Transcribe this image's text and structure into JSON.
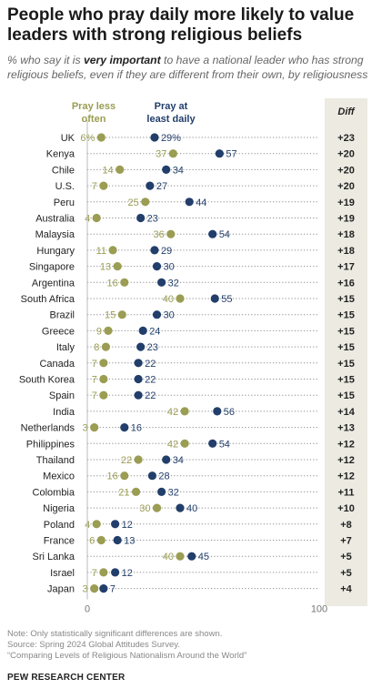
{
  "title": "People who pray daily more likely to value leaders with strong religious beliefs",
  "subtitle": {
    "before": "% who say it is ",
    "emphasis": "very important",
    "after": " to have a national leader who has strong religious beliefs, even if they are different from their own, by religiousness"
  },
  "footnotes": {
    "note": "Note: Only statistically significant differences are shown.",
    "source": "Source: Spring 2024 Global Attitudes Survey.",
    "report": "“Comparing Levels of Religious Nationalism Around the World”"
  },
  "brand": "PEW RESEARCH CENTER",
  "colors": {
    "pray_less_often": "#9a9d52",
    "pray_daily": "#223e6b",
    "diff_panel": "#eceae1",
    "dotted_line": "#8c8c8c"
  },
  "chart_data": {
    "type": "dot",
    "xlim": [
      0,
      100
    ],
    "x_ticks": [
      "0",
      "100"
    ],
    "diff_header": "Diff",
    "categories": [
      "UK",
      "Kenya",
      "Chile",
      "U.S.",
      "Peru",
      "Australia",
      "Malaysia",
      "Hungary",
      "Singapore",
      "Argentina",
      "South Africa",
      "Brazil",
      "Greece",
      "Italy",
      "Canada",
      "South Korea",
      "Spain",
      "India",
      "Netherlands",
      "Philippines",
      "Thailand",
      "Mexico",
      "Colombia",
      "Nigeria",
      "Poland",
      "France",
      "Sri Lanka",
      "Israel",
      "Japan"
    ],
    "series": [
      {
        "name": "Pray less often",
        "legend_lines": [
          "Pray less",
          "often"
        ],
        "labels": [
          "6%",
          "37",
          "14",
          "7",
          "25",
          "4",
          "36",
          "11",
          "13",
          "16",
          "40",
          "15",
          "9",
          "8",
          "7",
          "7",
          "7",
          "42",
          "3",
          "42",
          "22",
          "16",
          "21",
          "30",
          "4",
          "6",
          "40",
          "7",
          "3"
        ],
        "values": [
          6,
          37,
          14,
          7,
          25,
          4,
          36,
          11,
          13,
          16,
          40,
          15,
          9,
          8,
          7,
          7,
          7,
          42,
          3,
          42,
          22,
          16,
          21,
          30,
          4,
          6,
          40,
          7,
          3
        ]
      },
      {
        "name": "Pray at least daily",
        "legend_lines": [
          "Pray at",
          "least daily"
        ],
        "labels": [
          "29%",
          "57",
          "34",
          "27",
          "44",
          "23",
          "54",
          "29",
          "30",
          "32",
          "55",
          "30",
          "24",
          "23",
          "22",
          "22",
          "22",
          "56",
          "16",
          "54",
          "34",
          "28",
          "32",
          "40",
          "12",
          "13",
          "45",
          "12",
          "7"
        ],
        "values": [
          29,
          57,
          34,
          27,
          44,
          23,
          54,
          29,
          30,
          32,
          55,
          30,
          24,
          23,
          22,
          22,
          22,
          56,
          16,
          54,
          34,
          28,
          32,
          40,
          12,
          13,
          45,
          12,
          7
        ]
      }
    ],
    "diff": [
      "+23",
      "+20",
      "+20",
      "+20",
      "+19",
      "+19",
      "+18",
      "+18",
      "+17",
      "+16",
      "+15",
      "+15",
      "+15",
      "+15",
      "+15",
      "+15",
      "+15",
      "+14",
      "+13",
      "+12",
      "+12",
      "+12",
      "+11",
      "+10",
      "+8",
      "+7",
      "+5",
      "+5",
      "+4"
    ]
  }
}
